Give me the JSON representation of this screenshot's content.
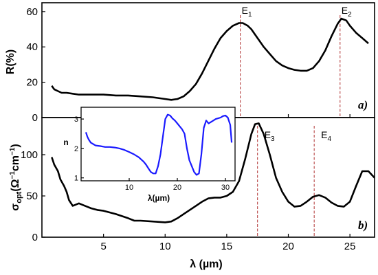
{
  "chart_data": [
    {
      "id": "panel_a",
      "type": "line",
      "ylabel": "R(%)",
      "panel_tag": "a)",
      "xlim": [
        0,
        27
      ],
      "ylim": [
        0,
        65
      ],
      "y_ticks": [
        0,
        20,
        40,
        60
      ],
      "series": [
        {
          "x": [
            0.8,
            1.0,
            1.3,
            1.6,
            2.0,
            2.5,
            3,
            4,
            5,
            6,
            7,
            8,
            9,
            10,
            10.5,
            11,
            11.5,
            12,
            12.5,
            13,
            13.5,
            14,
            14.5,
            15,
            15.5,
            16,
            16.3,
            16.7,
            17,
            17.5,
            18,
            18.5,
            19,
            19.5,
            20,
            20.5,
            21,
            21.5,
            22,
            22.5,
            23,
            23.5,
            24,
            24.3,
            24.7,
            25,
            25.5,
            26,
            26.5
          ],
          "y": [
            18,
            16,
            15,
            14,
            14,
            13.5,
            13,
            13,
            13,
            12.5,
            12.5,
            12,
            11.5,
            10.5,
            10,
            10.5,
            12,
            15,
            19,
            25,
            32,
            39,
            45,
            49,
            52,
            53.5,
            53.5,
            52,
            50,
            45,
            40,
            36,
            32,
            29.5,
            28,
            27,
            26.5,
            26.5,
            28,
            32,
            38,
            46,
            53,
            56,
            55,
            52,
            48,
            45,
            42
          ]
        }
      ],
      "markers": [
        {
          "label": "E",
          "sub": "1",
          "x": 16.1
        },
        {
          "label": "E",
          "sub": "2",
          "x": 24.2
        }
      ]
    },
    {
      "id": "panel_b",
      "type": "line",
      "xlabel": "λ (µm)",
      "ylabel_main": "σ",
      "ylabel_sub": "opt",
      "ylabel_rest": "(Ω",
      "ylabel_sup1": "−1",
      "ylabel_mid": "cm",
      "ylabel_sup2": "−1",
      "ylabel_end": ")",
      "panel_tag": "b)",
      "xlim": [
        0,
        27
      ],
      "ylim": [
        0,
        145
      ],
      "x_ticks": [
        5,
        10,
        15,
        20,
        25
      ],
      "y_ticks": [
        0,
        50,
        100
      ],
      "series": [
        {
          "x": [
            0.8,
            1.0,
            1.3,
            1.5,
            1.8,
            2.0,
            2.2,
            2.5,
            3,
            3.5,
            4,
            4.5,
            5,
            6,
            7,
            7.5,
            8,
            9,
            10,
            10.5,
            11,
            11.5,
            12,
            12.5,
            13,
            13.5,
            14,
            14.5,
            15,
            15.5,
            16,
            16.5,
            17,
            17.3,
            17.6,
            18,
            18.5,
            19,
            19.5,
            20,
            20.5,
            21,
            21.5,
            22,
            22.5,
            23,
            23.5,
            24,
            24.5,
            25,
            25.5,
            26,
            26.5,
            27
          ],
          "y": [
            97,
            88,
            80,
            70,
            62,
            55,
            45,
            38,
            41,
            38,
            35,
            33,
            32,
            28,
            23,
            20,
            20,
            19,
            18,
            19,
            23,
            28,
            33,
            38,
            43,
            47,
            48,
            48,
            50,
            55,
            68,
            95,
            125,
            137,
            138,
            125,
            100,
            72,
            55,
            43,
            37,
            38,
            43,
            49,
            51,
            48,
            42,
            38,
            37,
            43,
            62,
            80,
            80,
            72
          ]
        }
      ],
      "markers": [
        {
          "label": "E",
          "sub": "3",
          "x": 17.5
        },
        {
          "label": "E",
          "sub": "4",
          "x": 22.1
        }
      ]
    },
    {
      "id": "inset",
      "type": "line",
      "xlabel": "λ(µm)",
      "ylabel": "n",
      "xlim": [
        0,
        32
      ],
      "ylim": [
        0.9,
        3.4
      ],
      "x_ticks": [
        10,
        20,
        30
      ],
      "y_ticks": [
        1,
        2,
        3
      ],
      "series": [
        {
          "x": [
            1.0,
            1.3,
            1.6,
            2.0,
            2.5,
            3,
            4,
            5,
            6,
            7,
            8,
            9,
            10,
            11,
            12,
            13,
            13.5,
            14,
            14.5,
            15,
            15.5,
            16,
            16.5,
            17,
            17.5,
            18,
            18.5,
            19,
            19.5,
            20,
            20.5,
            21,
            21.5,
            22,
            22.5,
            23,
            23.5,
            24,
            24.5,
            25,
            25.5,
            26,
            26.5,
            27,
            28,
            29,
            29.5,
            30,
            30.5,
            31,
            31.3
          ],
          "y": [
            2.55,
            2.4,
            2.3,
            2.2,
            2.15,
            2.1,
            2.08,
            2.05,
            2.05,
            2.03,
            2.0,
            1.95,
            1.88,
            1.8,
            1.7,
            1.55,
            1.45,
            1.32,
            1.2,
            1.15,
            1.15,
            1.4,
            1.8,
            2.4,
            3.0,
            3.15,
            3.12,
            3.02,
            2.95,
            2.85,
            2.75,
            2.65,
            2.5,
            2.0,
            1.6,
            1.4,
            1.2,
            1.1,
            1.15,
            1.8,
            2.7,
            2.95,
            2.85,
            2.9,
            3.0,
            3.05,
            3.1,
            3.12,
            3.05,
            2.8,
            2.2
          ]
        }
      ]
    }
  ]
}
